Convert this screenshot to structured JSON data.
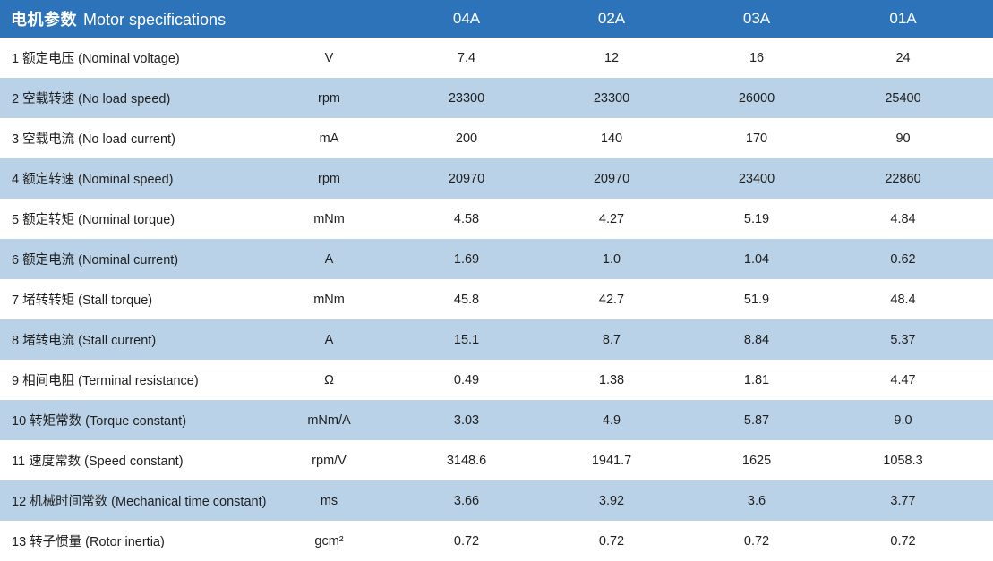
{
  "table": {
    "title_zh": "电机参数",
    "title_en": "Motor specifications",
    "model_columns": [
      "04A",
      "02A",
      "03A",
      "01A"
    ],
    "rows": [
      {
        "label": "1 额定电压 (Nominal voltage)",
        "unit": "V",
        "values": [
          "7.4",
          "12",
          "16",
          "24"
        ]
      },
      {
        "label": "2 空载转速 (No load speed)",
        "unit": "rpm",
        "values": [
          "23300",
          "23300",
          "26000",
          "25400"
        ]
      },
      {
        "label": "3 空载电流 (No load current)",
        "unit": "mA",
        "values": [
          "200",
          "140",
          "170",
          "90"
        ]
      },
      {
        "label": "4 额定转速 (Nominal speed)",
        "unit": "rpm",
        "values": [
          "20970",
          "20970",
          "23400",
          "22860"
        ]
      },
      {
        "label": "5 额定转矩 (Nominal torque)",
        "unit": "mNm",
        "values": [
          "4.58",
          "4.27",
          "5.19",
          "4.84"
        ]
      },
      {
        "label": "6 额定电流 (Nominal current)",
        "unit": "A",
        "values": [
          "1.69",
          "1.0",
          "1.04",
          "0.62"
        ]
      },
      {
        "label": "7 堵转转矩 (Stall torque)",
        "unit": "mNm",
        "values": [
          "45.8",
          "42.7",
          "51.9",
          "48.4"
        ]
      },
      {
        "label": "8 堵转电流 (Stall current)",
        "unit": "A",
        "values": [
          "15.1",
          "8.7",
          "8.84",
          "5.37"
        ]
      },
      {
        "label": "9 相间电阻 (Terminal resistance)",
        "unit": "Ω",
        "values": [
          "0.49",
          "1.38",
          "1.81",
          "4.47"
        ]
      },
      {
        "label": "10 转矩常数 (Torque constant)",
        "unit": "mNm/A",
        "values": [
          "3.03",
          "4.9",
          "5.87",
          "9.0"
        ]
      },
      {
        "label": "11 速度常数 (Speed constant)",
        "unit": "rpm/V",
        "values": [
          "3148.6",
          "1941.7",
          "1625",
          "1058.3"
        ]
      },
      {
        "label": "12 机械时间常数 (Mechanical time constant)",
        "unit": "ms",
        "values": [
          "3.66",
          "3.92",
          "3.6",
          "3.77"
        ]
      },
      {
        "label": "13 转子惯量 (Rotor inertia)",
        "unit": "gcm²",
        "values": [
          "0.72",
          "0.72",
          "0.72",
          "0.72"
        ]
      }
    ]
  },
  "colors": {
    "header_bg": "#2c73b9",
    "header_text": "#ffffff",
    "alt_row_bg": "#bad2e8",
    "row_bg": "#ffffff",
    "body_text": "#1f1f1f"
  }
}
